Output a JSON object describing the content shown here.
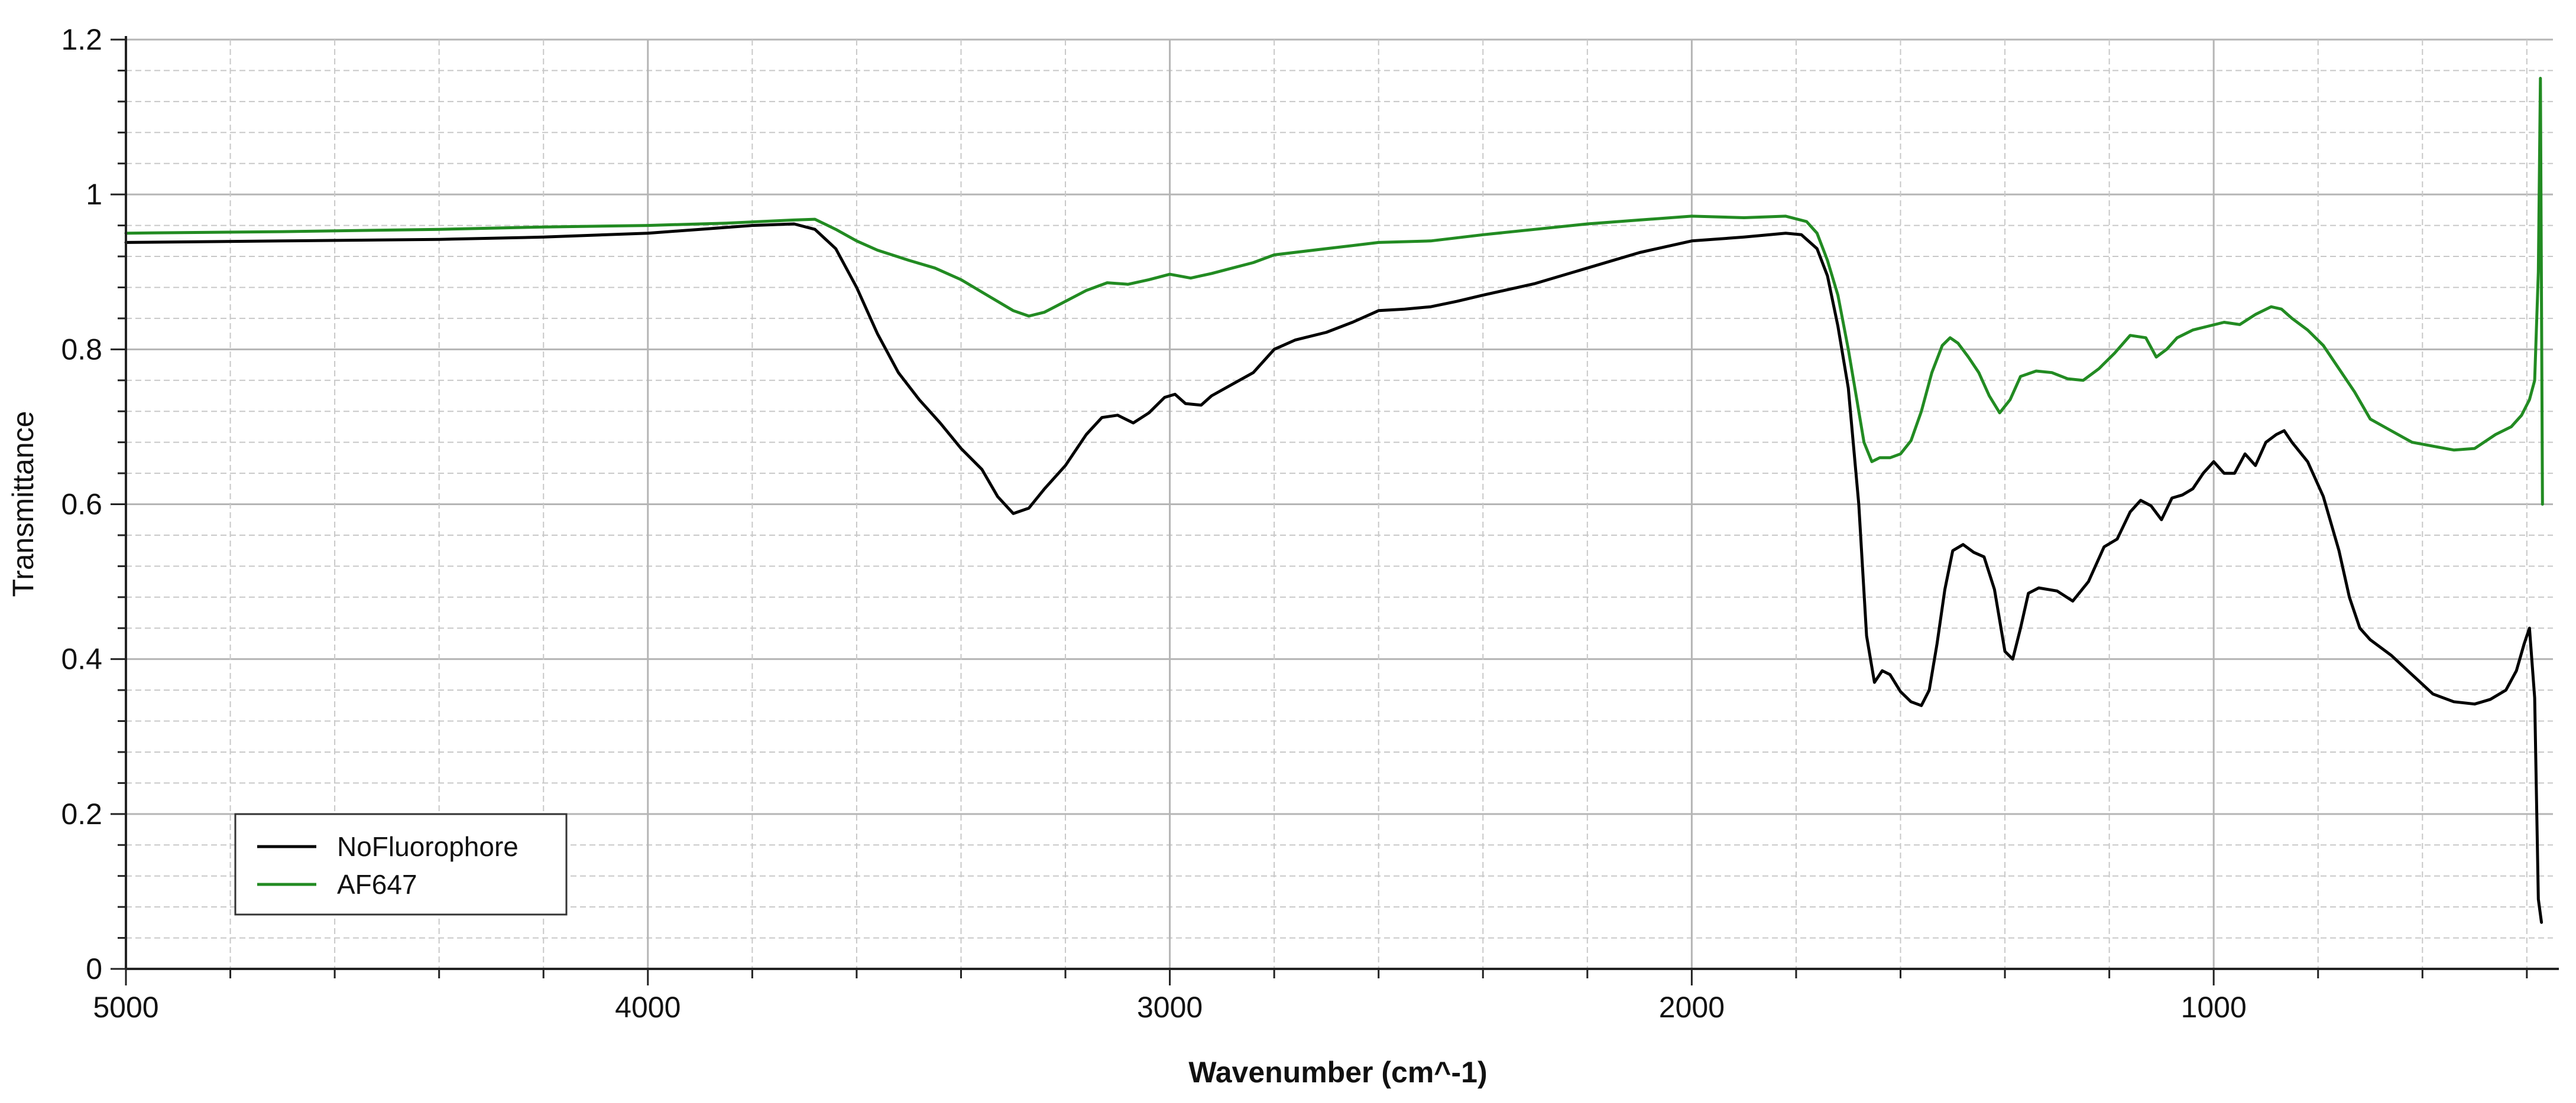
{
  "chart_data": {
    "type": "line",
    "title": "",
    "xlabel": "Wavenumber (cm^-1)",
    "ylabel": "Transmittance",
    "xlim": [
      5000,
      350
    ],
    "ylim": [
      0,
      1.2
    ],
    "x_reversed": true,
    "x_ticks": [
      5000,
      4000,
      3000,
      2000,
      1000
    ],
    "y_ticks": [
      0,
      0.2,
      0.4,
      0.6,
      0.8,
      1,
      1.2
    ],
    "x_tick_labels": [
      "5000",
      "4000",
      "3000",
      "2000",
      "1000"
    ],
    "y_tick_labels": [
      "0",
      "0.2",
      "0.4",
      "0.6",
      "0.8",
      "1",
      "1.2"
    ],
    "grid": true,
    "legend_position": "bottom-left",
    "series": [
      {
        "name": "NoFluorophore",
        "color": "#000000",
        "points": [
          [
            5000,
            0.938
          ],
          [
            4700,
            0.94
          ],
          [
            4400,
            0.942
          ],
          [
            4200,
            0.945
          ],
          [
            4000,
            0.95
          ],
          [
            3900,
            0.955
          ],
          [
            3800,
            0.96
          ],
          [
            3720,
            0.962
          ],
          [
            3680,
            0.955
          ],
          [
            3640,
            0.93
          ],
          [
            3600,
            0.88
          ],
          [
            3560,
            0.82
          ],
          [
            3520,
            0.77
          ],
          [
            3480,
            0.735
          ],
          [
            3440,
            0.705
          ],
          [
            3400,
            0.672
          ],
          [
            3360,
            0.645
          ],
          [
            3330,
            0.61
          ],
          [
            3300,
            0.588
          ],
          [
            3270,
            0.595
          ],
          [
            3240,
            0.62
          ],
          [
            3200,
            0.65
          ],
          [
            3160,
            0.69
          ],
          [
            3130,
            0.712
          ],
          [
            3100,
            0.715
          ],
          [
            3070,
            0.705
          ],
          [
            3040,
            0.718
          ],
          [
            3010,
            0.738
          ],
          [
            2990,
            0.742
          ],
          [
            2970,
            0.73
          ],
          [
            2940,
            0.728
          ],
          [
            2920,
            0.74
          ],
          [
            2880,
            0.755
          ],
          [
            2840,
            0.77
          ],
          [
            2800,
            0.8
          ],
          [
            2760,
            0.812
          ],
          [
            2700,
            0.822
          ],
          [
            2650,
            0.835
          ],
          [
            2600,
            0.85
          ],
          [
            2550,
            0.852
          ],
          [
            2500,
            0.855
          ],
          [
            2450,
            0.862
          ],
          [
            2400,
            0.87
          ],
          [
            2300,
            0.885
          ],
          [
            2200,
            0.905
          ],
          [
            2100,
            0.925
          ],
          [
            2000,
            0.94
          ],
          [
            1900,
            0.945
          ],
          [
            1820,
            0.95
          ],
          [
            1790,
            0.948
          ],
          [
            1760,
            0.93
          ],
          [
            1740,
            0.895
          ],
          [
            1720,
            0.83
          ],
          [
            1700,
            0.75
          ],
          [
            1680,
            0.6
          ],
          [
            1665,
            0.43
          ],
          [
            1650,
            0.37
          ],
          [
            1635,
            0.385
          ],
          [
            1620,
            0.38
          ],
          [
            1600,
            0.358
          ],
          [
            1580,
            0.345
          ],
          [
            1560,
            0.34
          ],
          [
            1545,
            0.36
          ],
          [
            1530,
            0.42
          ],
          [
            1515,
            0.49
          ],
          [
            1500,
            0.54
          ],
          [
            1480,
            0.548
          ],
          [
            1460,
            0.538
          ],
          [
            1440,
            0.532
          ],
          [
            1420,
            0.49
          ],
          [
            1400,
            0.41
          ],
          [
            1385,
            0.4
          ],
          [
            1370,
            0.44
          ],
          [
            1355,
            0.485
          ],
          [
            1335,
            0.492
          ],
          [
            1300,
            0.488
          ],
          [
            1270,
            0.475
          ],
          [
            1240,
            0.5
          ],
          [
            1210,
            0.545
          ],
          [
            1185,
            0.555
          ],
          [
            1160,
            0.59
          ],
          [
            1140,
            0.605
          ],
          [
            1120,
            0.598
          ],
          [
            1100,
            0.58
          ],
          [
            1080,
            0.608
          ],
          [
            1060,
            0.612
          ],
          [
            1040,
            0.62
          ],
          [
            1020,
            0.64
          ],
          [
            1000,
            0.655
          ],
          [
            980,
            0.64
          ],
          [
            960,
            0.64
          ],
          [
            940,
            0.665
          ],
          [
            920,
            0.65
          ],
          [
            900,
            0.68
          ],
          [
            880,
            0.69
          ],
          [
            865,
            0.695
          ],
          [
            850,
            0.68
          ],
          [
            820,
            0.655
          ],
          [
            790,
            0.61
          ],
          [
            760,
            0.54
          ],
          [
            740,
            0.48
          ],
          [
            720,
            0.44
          ],
          [
            700,
            0.425
          ],
          [
            660,
            0.405
          ],
          [
            620,
            0.38
          ],
          [
            580,
            0.355
          ],
          [
            540,
            0.345
          ],
          [
            500,
            0.342
          ],
          [
            470,
            0.348
          ],
          [
            440,
            0.36
          ],
          [
            420,
            0.385
          ],
          [
            405,
            0.42
          ],
          [
            395,
            0.44
          ],
          [
            385,
            0.35
          ],
          [
            378,
            0.09
          ],
          [
            372,
            0.06
          ]
        ]
      },
      {
        "name": "AF647",
        "color": "#228B22",
        "points": [
          [
            5000,
            0.95
          ],
          [
            4700,
            0.952
          ],
          [
            4400,
            0.955
          ],
          [
            4200,
            0.958
          ],
          [
            4000,
            0.96
          ],
          [
            3850,
            0.963
          ],
          [
            3720,
            0.967
          ],
          [
            3680,
            0.968
          ],
          [
            3640,
            0.955
          ],
          [
            3600,
            0.94
          ],
          [
            3560,
            0.928
          ],
          [
            3500,
            0.915
          ],
          [
            3450,
            0.905
          ],
          [
            3400,
            0.89
          ],
          [
            3350,
            0.87
          ],
          [
            3300,
            0.85
          ],
          [
            3270,
            0.843
          ],
          [
            3240,
            0.848
          ],
          [
            3200,
            0.862
          ],
          [
            3160,
            0.876
          ],
          [
            3120,
            0.886
          ],
          [
            3080,
            0.884
          ],
          [
            3040,
            0.89
          ],
          [
            3000,
            0.897
          ],
          [
            2960,
            0.892
          ],
          [
            2920,
            0.898
          ],
          [
            2880,
            0.905
          ],
          [
            2840,
            0.912
          ],
          [
            2800,
            0.922
          ],
          [
            2700,
            0.93
          ],
          [
            2600,
            0.938
          ],
          [
            2500,
            0.94
          ],
          [
            2400,
            0.948
          ],
          [
            2300,
            0.955
          ],
          [
            2200,
            0.962
          ],
          [
            2100,
            0.967
          ],
          [
            2000,
            0.972
          ],
          [
            1900,
            0.97
          ],
          [
            1820,
            0.972
          ],
          [
            1780,
            0.965
          ],
          [
            1760,
            0.95
          ],
          [
            1740,
            0.915
          ],
          [
            1720,
            0.87
          ],
          [
            1700,
            0.8
          ],
          [
            1685,
            0.74
          ],
          [
            1670,
            0.68
          ],
          [
            1655,
            0.655
          ],
          [
            1640,
            0.66
          ],
          [
            1620,
            0.66
          ],
          [
            1600,
            0.665
          ],
          [
            1580,
            0.682
          ],
          [
            1560,
            0.72
          ],
          [
            1540,
            0.77
          ],
          [
            1520,
            0.805
          ],
          [
            1505,
            0.815
          ],
          [
            1490,
            0.808
          ],
          [
            1470,
            0.79
          ],
          [
            1450,
            0.77
          ],
          [
            1430,
            0.74
          ],
          [
            1410,
            0.718
          ],
          [
            1390,
            0.735
          ],
          [
            1370,
            0.765
          ],
          [
            1340,
            0.772
          ],
          [
            1310,
            0.77
          ],
          [
            1280,
            0.762
          ],
          [
            1250,
            0.76
          ],
          [
            1220,
            0.775
          ],
          [
            1190,
            0.795
          ],
          [
            1160,
            0.818
          ],
          [
            1130,
            0.815
          ],
          [
            1110,
            0.79
          ],
          [
            1090,
            0.8
          ],
          [
            1070,
            0.815
          ],
          [
            1040,
            0.825
          ],
          [
            1010,
            0.83
          ],
          [
            980,
            0.835
          ],
          [
            950,
            0.832
          ],
          [
            920,
            0.845
          ],
          [
            890,
            0.855
          ],
          [
            870,
            0.852
          ],
          [
            850,
            0.84
          ],
          [
            820,
            0.825
          ],
          [
            790,
            0.805
          ],
          [
            760,
            0.775
          ],
          [
            730,
            0.745
          ],
          [
            700,
            0.71
          ],
          [
            660,
            0.695
          ],
          [
            620,
            0.68
          ],
          [
            580,
            0.675
          ],
          [
            540,
            0.67
          ],
          [
            500,
            0.672
          ],
          [
            460,
            0.69
          ],
          [
            430,
            0.7
          ],
          [
            410,
            0.715
          ],
          [
            395,
            0.735
          ],
          [
            385,
            0.76
          ],
          [
            378,
            0.9
          ],
          [
            374,
            1.15
          ],
          [
            370,
            0.6
          ]
        ]
      }
    ]
  }
}
